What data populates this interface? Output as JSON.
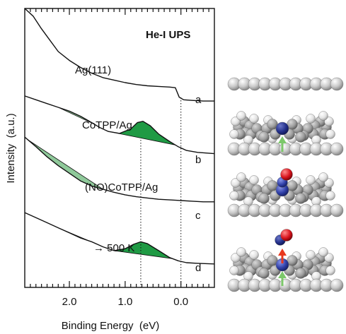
{
  "chart_data": {
    "type": "line",
    "title": "He-I UPS",
    "xlabel": "Binding Energy  (eV)",
    "ylabel": "Intensity  (a.u.)",
    "xlim": [
      2.8,
      -0.6
    ],
    "ylim": [
      0,
      4.4
    ],
    "x_ticks": [
      2.0,
      1.0,
      0.0
    ],
    "x_tick_labels": [
      "2.0",
      "1.0",
      "0.0"
    ],
    "reversed_x_axis": true,
    "reference_lines_x": [
      0.72,
      0.0
    ],
    "series": [
      {
        "name": "Ag(111)",
        "letter": "a",
        "points": [
          [
            2.8,
            4.4
          ],
          [
            2.65,
            4.28
          ],
          [
            2.5,
            4.08
          ],
          [
            2.35,
            3.9
          ],
          [
            2.2,
            3.72
          ],
          [
            2.0,
            3.58
          ],
          [
            1.8,
            3.47
          ],
          [
            1.6,
            3.38
          ],
          [
            1.4,
            3.31
          ],
          [
            1.2,
            3.27
          ],
          [
            1.0,
            3.23
          ],
          [
            0.8,
            3.2
          ],
          [
            0.6,
            3.18
          ],
          [
            0.4,
            3.17
          ],
          [
            0.2,
            3.16
          ],
          [
            0.1,
            3.15
          ],
          [
            0.03,
            3.0
          ],
          [
            -0.05,
            2.96
          ],
          [
            -0.2,
            2.95
          ],
          [
            -0.4,
            2.94
          ],
          [
            -0.6,
            2.94
          ]
        ]
      },
      {
        "name": "CoTPP/Ag",
        "letter": "b",
        "points": [
          [
            2.8,
            3.02
          ],
          [
            2.6,
            2.96
          ],
          [
            2.4,
            2.9
          ],
          [
            2.2,
            2.84
          ],
          [
            2.0,
            2.78
          ],
          [
            1.8,
            2.7
          ],
          [
            1.6,
            2.6
          ],
          [
            1.45,
            2.52
          ],
          [
            1.3,
            2.46
          ],
          [
            1.1,
            2.43
          ],
          [
            0.9,
            2.5
          ],
          [
            0.78,
            2.6
          ],
          [
            0.68,
            2.62
          ],
          [
            0.55,
            2.55
          ],
          [
            0.4,
            2.42
          ],
          [
            0.2,
            2.3
          ],
          [
            0.05,
            2.22
          ],
          [
            -0.1,
            2.16
          ],
          [
            -0.3,
            2.13
          ],
          [
            -0.6,
            2.11
          ]
        ]
      },
      {
        "name": "(NO)CoTPP/Ag",
        "letter": "c",
        "points": [
          [
            2.8,
            2.37
          ],
          [
            2.6,
            2.22
          ],
          [
            2.4,
            2.06
          ],
          [
            2.2,
            1.92
          ],
          [
            2.0,
            1.8
          ],
          [
            1.8,
            1.68
          ],
          [
            1.6,
            1.6
          ],
          [
            1.4,
            1.55
          ],
          [
            1.2,
            1.5
          ],
          [
            1.0,
            1.46
          ],
          [
            0.8,
            1.43
          ],
          [
            0.6,
            1.41
          ],
          [
            0.4,
            1.39
          ],
          [
            0.2,
            1.38
          ],
          [
            0.0,
            1.37
          ],
          [
            -0.2,
            1.36
          ],
          [
            -0.4,
            1.35
          ],
          [
            -0.6,
            1.35
          ]
        ]
      },
      {
        "name": "→ 500 K",
        "letter": "d",
        "points": [
          [
            2.8,
            1.18
          ],
          [
            2.6,
            1.1
          ],
          [
            2.4,
            1.02
          ],
          [
            2.2,
            0.94
          ],
          [
            2.0,
            0.86
          ],
          [
            1.8,
            0.78
          ],
          [
            1.6,
            0.72
          ],
          [
            1.4,
            0.64
          ],
          [
            1.2,
            0.58
          ],
          [
            1.0,
            0.61
          ],
          [
            0.85,
            0.68
          ],
          [
            0.72,
            0.72
          ],
          [
            0.6,
            0.69
          ],
          [
            0.4,
            0.58
          ],
          [
            0.2,
            0.47
          ],
          [
            0.05,
            0.42
          ],
          [
            -0.1,
            0.39
          ],
          [
            -0.3,
            0.38
          ],
          [
            -0.6,
            0.37
          ]
        ]
      }
    ],
    "shaded_regions": [
      {
        "series": "CoTPP/Ag",
        "x_from": 2.2,
        "x_to": 1.55,
        "tone": "light"
      },
      {
        "series": "CoTPP/Ag",
        "x_from": 1.3,
        "x_to": 0.1,
        "tone": "dark"
      },
      {
        "series": "(NO)CoTPP/Ag",
        "x_from": 2.75,
        "x_to": 1.4,
        "tone": "light"
      },
      {
        "series": "→ 500 K",
        "x_from": 2.2,
        "x_to": 1.5,
        "tone": "light"
      },
      {
        "series": "→ 500 K",
        "x_from": 1.2,
        "x_to": 0.15,
        "tone": "dark"
      }
    ]
  },
  "colors": {
    "curve": "#111111",
    "fill_light": "#8fc99a",
    "fill_dark": "#1f9a44",
    "arrow_green": "#7cc86a",
    "arrow_red": "#e8391f",
    "atom_gray": "#c9c9c9",
    "atom_white": "#f2f2f2",
    "atom_blue": "#2f3fa8",
    "atom_red": "#d8141d"
  },
  "models": [
    {
      "name": "Ag(111) surface",
      "icon": "silver-surface-model"
    },
    {
      "name": "CoTPP on Ag",
      "icon": "cotpp-molecule-model",
      "arrows": [
        "green-up"
      ]
    },
    {
      "name": "(NO)CoTPP on Ag",
      "icon": "nocotpp-molecule-model",
      "has_no_ligand": true
    },
    {
      "name": "after 500 K",
      "icon": "desorption-molecule-model",
      "has_no_ligand": true,
      "arrows": [
        "red-up",
        "green-up"
      ]
    }
  ]
}
